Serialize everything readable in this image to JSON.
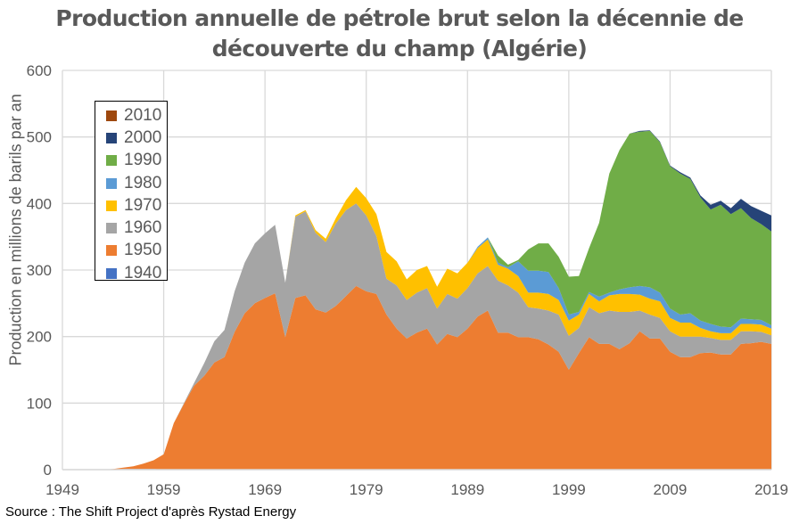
{
  "chart_data": {
    "type": "area",
    "stacked": true,
    "title": "Production annuelle de pétrole brut selon la décennie de découverte du champ (Algérie)",
    "title_lines": [
      "Production annuelle de pétrole brut selon la décennie de",
      "découverte du champ (Algérie)"
    ],
    "xlabel": "",
    "ylabel": "Production en millions de barils par an",
    "xlim": [
      1949,
      2019
    ],
    "ylim": [
      0,
      600
    ],
    "x_ticks": [
      1949,
      1959,
      1969,
      1979,
      1989,
      1999,
      2009,
      2019
    ],
    "y_ticks": [
      0,
      100,
      200,
      300,
      400,
      500,
      600
    ],
    "grid": true,
    "legend_placement": "top-left",
    "years": [
      1949,
      1950,
      1951,
      1952,
      1953,
      1954,
      1955,
      1956,
      1957,
      1958,
      1959,
      1960,
      1961,
      1962,
      1963,
      1964,
      1965,
      1966,
      1967,
      1968,
      1969,
      1970,
      1971,
      1972,
      1973,
      1974,
      1975,
      1976,
      1977,
      1978,
      1979,
      1980,
      1981,
      1982,
      1983,
      1984,
      1985,
      1986,
      1987,
      1988,
      1989,
      1990,
      1991,
      1992,
      1993,
      1994,
      1995,
      1996,
      1997,
      1998,
      1999,
      2000,
      2001,
      2002,
      2003,
      2004,
      2005,
      2006,
      2007,
      2008,
      2009,
      2010,
      2011,
      2012,
      2013,
      2014,
      2015,
      2016,
      2017,
      2018,
      2019
    ],
    "series": [
      {
        "name": "1940",
        "color": "#4472C4",
        "values": [
          0,
          0,
          0,
          0,
          0,
          0,
          1,
          1,
          1,
          1,
          0,
          0,
          0,
          0,
          0,
          0,
          0,
          0,
          0,
          0,
          0,
          0,
          0,
          0,
          0,
          0,
          0,
          0,
          0,
          0,
          0,
          0,
          0,
          0,
          0,
          0,
          0,
          0,
          0,
          0,
          0,
          0,
          0,
          0,
          0,
          0,
          0,
          0,
          0,
          0,
          0,
          0,
          0,
          0,
          0,
          0,
          0,
          0,
          0,
          0,
          0,
          0,
          0,
          0,
          0,
          0,
          0,
          0,
          0,
          0,
          0
        ]
      },
      {
        "name": "1950",
        "color": "#ED7D31",
        "values": [
          0,
          0,
          0,
          0,
          0,
          1,
          2,
          4,
          8,
          13,
          23,
          70,
          99,
          126,
          141,
          161,
          169,
          207,
          235,
          250,
          258,
          265,
          199,
          258,
          262,
          241,
          236,
          246,
          261,
          276,
          268,
          264,
          233,
          212,
          197,
          206,
          212,
          188,
          204,
          199,
          212,
          230,
          239,
          206,
          206,
          199,
          199,
          196,
          188,
          177,
          150,
          175,
          199,
          189,
          189,
          181,
          190,
          208,
          197,
          197,
          177,
          169,
          169,
          175,
          176,
          173,
          173,
          189,
          190,
          192,
          189
        ]
      },
      {
        "name": "1960",
        "color": "#A5A5A5",
        "values": [
          0,
          0,
          0,
          0,
          0,
          0,
          0,
          0,
          0,
          0,
          0,
          0,
          1,
          4,
          19,
          32,
          41,
          61,
          76,
          90,
          97,
          103,
          82,
          122,
          126,
          115,
          106,
          124,
          129,
          124,
          114,
          87,
          54,
          65,
          58,
          60,
          61,
          54,
          60,
          58,
          61,
          65,
          67,
          78,
          71,
          67,
          45,
          46,
          51,
          56,
          51,
          38,
          45,
          46,
          50,
          56,
          47,
          31,
          36,
          31,
          31,
          31,
          31,
          25,
          22,
          22,
          22,
          19,
          18,
          15,
          13
        ]
      },
      {
        "name": "1970",
        "color": "#FFC000",
        "values": [
          0,
          0,
          0,
          0,
          0,
          0,
          0,
          0,
          0,
          0,
          0,
          0,
          0,
          0,
          0,
          0,
          0,
          0,
          0,
          0,
          0,
          0,
          0,
          2,
          2,
          4,
          5,
          8,
          15,
          25,
          26,
          33,
          40,
          36,
          31,
          34,
          33,
          33,
          38,
          38,
          38,
          38,
          40,
          24,
          25,
          25,
          22,
          24,
          25,
          22,
          23,
          20,
          20,
          18,
          23,
          27,
          27,
          24,
          24,
          25,
          20,
          21,
          21,
          13,
          10,
          10,
          10,
          11,
          11,
          11,
          10
        ]
      },
      {
        "name": "1980",
        "color": "#5B9BD5",
        "values": [
          0,
          0,
          0,
          0,
          0,
          0,
          0,
          0,
          0,
          0,
          0,
          0,
          0,
          0,
          0,
          0,
          0,
          0,
          0,
          0,
          0,
          0,
          0,
          0,
          0,
          0,
          0,
          0,
          0,
          0,
          0,
          0,
          0,
          0,
          0,
          0,
          0,
          0,
          0,
          0,
          0,
          2,
          3,
          3,
          2,
          22,
          33,
          33,
          33,
          18,
          9,
          4,
          3,
          7,
          4,
          7,
          10,
          13,
          17,
          13,
          14,
          12,
          14,
          11,
          11,
          10,
          9,
          8,
          7,
          7,
          5
        ]
      },
      {
        "name": "1990",
        "color": "#70AD47",
        "values": [
          0,
          0,
          0,
          0,
          0,
          0,
          0,
          0,
          0,
          0,
          0,
          0,
          0,
          0,
          0,
          0,
          0,
          0,
          0,
          0,
          0,
          0,
          0,
          0,
          0,
          0,
          0,
          0,
          0,
          0,
          0,
          0,
          0,
          0,
          0,
          0,
          0,
          0,
          0,
          0,
          0,
          0,
          0,
          11,
          4,
          2,
          32,
          41,
          43,
          47,
          57,
          54,
          66,
          111,
          179,
          209,
          231,
          232,
          235,
          226,
          214,
          212,
          202,
          185,
          172,
          183,
          170,
          166,
          152,
          144,
          141
        ]
      },
      {
        "name": "2000",
        "color": "#264478",
        "values": [
          0,
          0,
          0,
          0,
          0,
          0,
          0,
          0,
          0,
          0,
          0,
          0,
          0,
          0,
          0,
          0,
          0,
          0,
          0,
          0,
          0,
          0,
          0,
          0,
          0,
          0,
          0,
          0,
          0,
          0,
          0,
          0,
          0,
          0,
          0,
          0,
          0,
          0,
          0,
          0,
          0,
          0,
          0,
          0,
          0,
          0,
          0,
          0,
          0,
          0,
          0,
          0,
          0,
          0,
          0,
          0,
          0,
          1,
          1,
          1,
          1,
          2,
          2,
          3,
          7,
          6,
          9,
          14,
          18,
          20,
          24
        ]
      },
      {
        "name": "2010",
        "color": "#9E480E",
        "values": [
          0,
          0,
          0,
          0,
          0,
          0,
          0,
          0,
          0,
          0,
          0,
          0,
          0,
          0,
          0,
          0,
          0,
          0,
          0,
          0,
          0,
          0,
          0,
          0,
          0,
          0,
          0,
          0,
          0,
          0,
          0,
          0,
          0,
          0,
          0,
          0,
          0,
          0,
          0,
          0,
          0,
          0,
          0,
          0,
          0,
          0,
          0,
          0,
          0,
          0,
          0,
          0,
          0,
          0,
          0,
          0,
          0,
          0,
          0,
          0,
          0,
          0,
          0,
          0,
          0,
          0,
          0,
          0,
          0,
          0,
          0
        ]
      }
    ],
    "legend_order": [
      "2010",
      "2000",
      "1990",
      "1980",
      "1970",
      "1960",
      "1950",
      "1940"
    ]
  },
  "source": "Source : The Shift Project d'après Rystad Energy"
}
